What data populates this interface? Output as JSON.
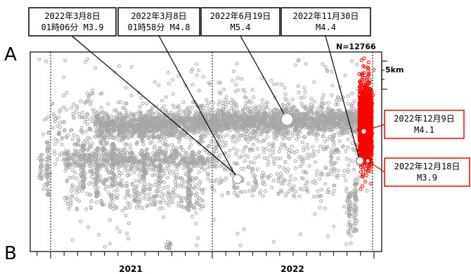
{
  "chart_data": {
    "type": "scatter",
    "title": "",
    "end_labels": {
      "top": "A",
      "bottom": "B"
    },
    "count_text": "N=12766",
    "scale_bar_label": "5km",
    "x_axis": {
      "tick_labels": [
        "2021",
        "2022"
      ],
      "range_years": [
        2020.55,
        2023.05
      ]
    },
    "series": [
      {
        "name": "",
        "color": "#a6a6a6"
      },
      {
        "name": "",
        "color": "#ff0000"
      }
    ],
    "annotations": [
      {
        "id": "a1",
        "lines": [
          "2022年3月8日",
          "01時06分 M3.9"
        ],
        "red": false
      },
      {
        "id": "a2",
        "lines": [
          "2022年3月8日",
          "01時58分 M4.8"
        ],
        "red": false
      },
      {
        "id": "a3",
        "lines": [
          "2022年6月19日",
          "M5.4"
        ],
        "red": false
      },
      {
        "id": "a4",
        "lines": [
          "2022年11月30日",
          "M4.4"
        ],
        "red": false
      },
      {
        "id": "a5",
        "lines": [
          "2022年12月9日",
          "M4.1"
        ],
        "red": true
      },
      {
        "id": "a6",
        "lines": [
          "2022年12月18日",
          "M3.9"
        ],
        "red": true
      }
    ],
    "major_events": [
      {
        "date": "2022-03-08",
        "magnitude": 3.9,
        "red": false
      },
      {
        "date": "2022-03-08",
        "magnitude": 4.8,
        "red": false
      },
      {
        "date": "2022-06-19",
        "magnitude": 5.4,
        "red": false
      },
      {
        "date": "2022-11-30",
        "magnitude": 4.4,
        "red": false
      },
      {
        "date": "2022-12-09",
        "magnitude": 4.1,
        "red": true
      },
      {
        "date": "2022-12-18",
        "magnitude": 3.9,
        "red": true
      }
    ]
  }
}
